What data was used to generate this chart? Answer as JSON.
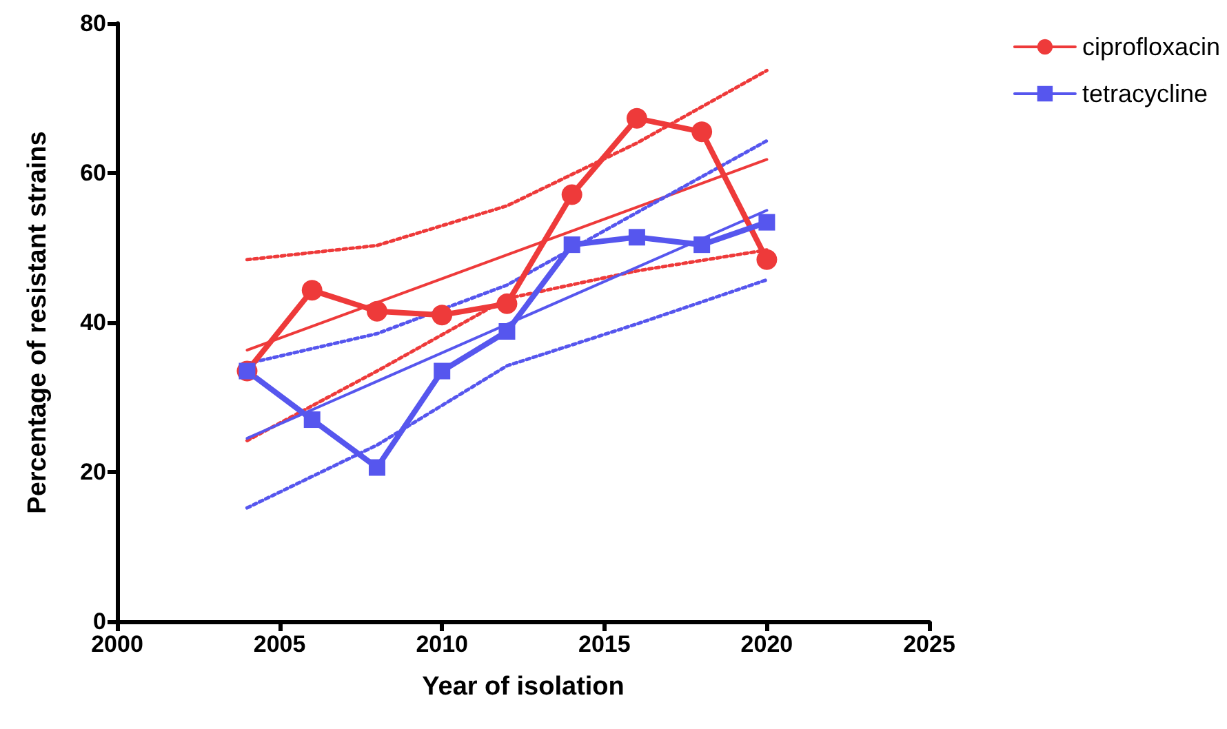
{
  "chart_data": {
    "type": "line",
    "xlabel": "Year of isolation",
    "ylabel": "Percentage of resistant strains",
    "xlim": [
      2000,
      2025
    ],
    "xticks": [
      2000,
      2005,
      2010,
      2015,
      2020,
      2025
    ],
    "ylim": [
      0,
      80
    ],
    "yticks": [
      0,
      20,
      40,
      60,
      80
    ],
    "grid": false,
    "legend": "top right",
    "line_style": "solid",
    "series": [
      {
        "name": "ciprofloxacin",
        "color": "#ee3a3a",
        "marker": "circle",
        "x": [
          2004,
          2006,
          2008,
          2010,
          2012,
          2014,
          2016,
          2018,
          2020
        ],
        "values": [
          33.5,
          44.3,
          41.5,
          41.0,
          42.5,
          57.1,
          67.3,
          65.5,
          48.4
        ]
      },
      {
        "name": "tetracycline",
        "color": "#5656ee",
        "marker": "square",
        "x": [
          2004,
          2006,
          2008,
          2010,
          2012,
          2014,
          2016,
          2018,
          2020
        ],
        "values": [
          33.5,
          27.0,
          20.6,
          33.5,
          38.8,
          50.4,
          51.4,
          50.4,
          53.4
        ]
      },
      {
        "color": "#ee3a3a",
        "marker": "none",
        "x": [
          2004,
          2020
        ],
        "values": [
          36.3,
          61.8
        ]
      },
      {
        "color": "#ee3a3a",
        "marker": "none",
        "line_style": "dotted",
        "x": [
          2004,
          2008,
          2012,
          2016,
          2020
        ],
        "values": [
          48.4,
          50.3,
          55.6,
          64.0,
          73.7
        ]
      },
      {
        "color": "#ee3a3a",
        "marker": "none",
        "line_style": "dotted",
        "x": [
          2004,
          2008,
          2012,
          2016,
          2020
        ],
        "values": [
          24.2,
          33.5,
          43.2,
          46.9,
          49.7
        ]
      },
      {
        "color": "#5656ee",
        "marker": "none",
        "x": [
          2004,
          2020
        ],
        "values": [
          24.5,
          55.0
        ]
      },
      {
        "color": "#5656ee",
        "marker": "none",
        "line_style": "dotted",
        "x": [
          2004,
          2008,
          2012,
          2016,
          2020
        ],
        "values": [
          34.5,
          38.5,
          45.0,
          54.7,
          64.3
        ]
      },
      {
        "color": "#5656ee",
        "marker": "none",
        "line_style": "dotted",
        "x": [
          2004,
          2008,
          2012,
          2016,
          2020
        ],
        "values": [
          15.2,
          23.6,
          34.2,
          39.8,
          45.7
        ]
      }
    ]
  }
}
